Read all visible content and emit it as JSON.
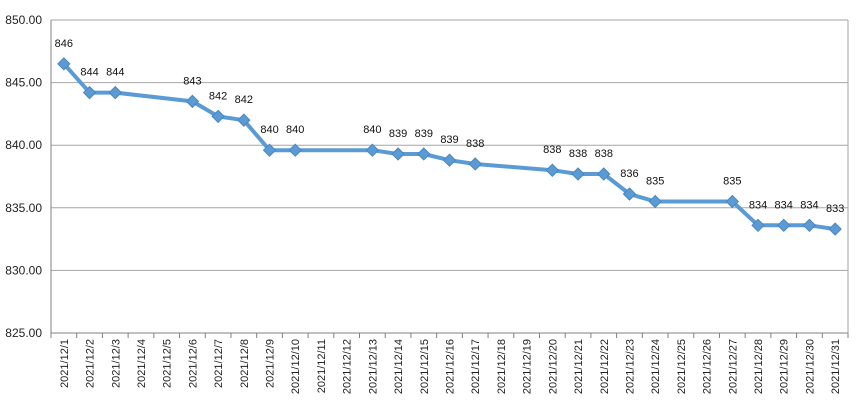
{
  "chart_data": {
    "type": "line",
    "title": "",
    "xlabel": "",
    "ylabel": "",
    "categories": [
      "2021/12/1",
      "2021/12/2",
      "2021/12/3",
      "2021/12/4",
      "2021/12/5",
      "2021/12/6",
      "2021/12/7",
      "2021/12/8",
      "2021/12/9",
      "2021/12/10",
      "2021/12/11",
      "2021/12/12",
      "2021/12/13",
      "2021/12/14",
      "2021/12/15",
      "2021/12/16",
      "2021/12/17",
      "2021/12/18",
      "2021/12/19",
      "2021/12/20",
      "2021/12/21",
      "2021/12/22",
      "2021/12/23",
      "2021/12/24",
      "2021/12/25",
      "2021/12/26",
      "2021/12/27",
      "2021/12/28",
      "2021/12/29",
      "2021/12/30",
      "2021/12/31"
    ],
    "ylim": [
      825,
      850
    ],
    "yticks": [
      "825.00",
      "830.00",
      "835.00",
      "840.00",
      "845.00",
      "850.00"
    ],
    "grid": true,
    "legend": "none",
    "line_color": "#5b9bd5",
    "points": [
      {
        "x": "2021/12/1",
        "y": 846.5,
        "label": "846"
      },
      {
        "x": "2021/12/2",
        "y": 844.2,
        "label": "844"
      },
      {
        "x": "2021/12/3",
        "y": 844.2,
        "label": "844"
      },
      {
        "x": "2021/12/6",
        "y": 843.5,
        "label": "843"
      },
      {
        "x": "2021/12/7",
        "y": 842.3,
        "label": "842"
      },
      {
        "x": "2021/12/8",
        "y": 842.0,
        "label": "842"
      },
      {
        "x": "2021/12/9",
        "y": 839.6,
        "label": "840"
      },
      {
        "x": "2021/12/10",
        "y": 839.6,
        "label": "840"
      },
      {
        "x": "2021/12/13",
        "y": 839.6,
        "label": "840"
      },
      {
        "x": "2021/12/14",
        "y": 839.3,
        "label": "839"
      },
      {
        "x": "2021/12/15",
        "y": 839.3,
        "label": "839"
      },
      {
        "x": "2021/12/16",
        "y": 838.8,
        "label": "839"
      },
      {
        "x": "2021/12/17",
        "y": 838.5,
        "label": "838"
      },
      {
        "x": "2021/12/20",
        "y": 838.0,
        "label": "838"
      },
      {
        "x": "2021/12/21",
        "y": 837.7,
        "label": "838"
      },
      {
        "x": "2021/12/22",
        "y": 837.7,
        "label": "838"
      },
      {
        "x": "2021/12/23",
        "y": 836.1,
        "label": "836"
      },
      {
        "x": "2021/12/24",
        "y": 835.5,
        "label": "835"
      },
      {
        "x": "2021/12/27",
        "y": 835.5,
        "label": "835"
      },
      {
        "x": "2021/12/28",
        "y": 833.6,
        "label": "834"
      },
      {
        "x": "2021/12/29",
        "y": 833.6,
        "label": "834"
      },
      {
        "x": "2021/12/30",
        "y": 833.6,
        "label": "834"
      },
      {
        "x": "2021/12/31",
        "y": 833.3,
        "label": "833"
      }
    ]
  }
}
